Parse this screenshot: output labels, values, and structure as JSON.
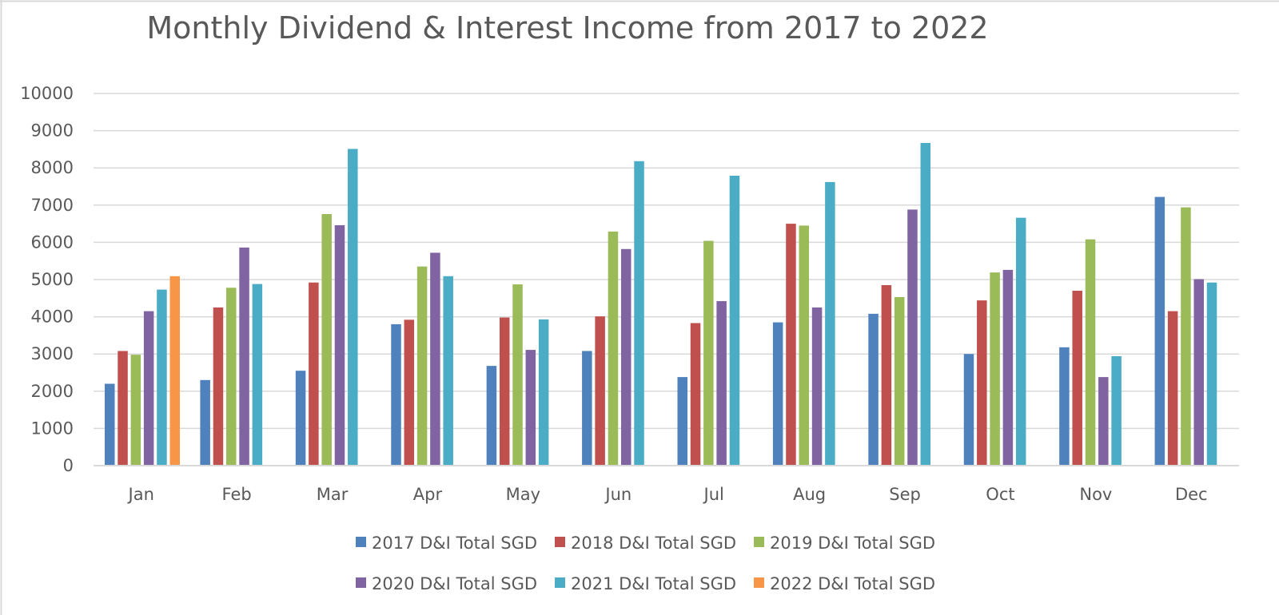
{
  "chart_data": {
    "type": "bar",
    "title": "Monthly Dividend & Interest Income from 2017 to 2022",
    "xlabel": "",
    "ylabel": "",
    "categories": [
      "Jan",
      "Feb",
      "Mar",
      "Apr",
      "May",
      "Jun",
      "Jul",
      "Aug",
      "Sep",
      "Oct",
      "Nov",
      "Dec"
    ],
    "ylim": [
      0,
      10000
    ],
    "yticks": [
      "0",
      "1000",
      "2000",
      "3000",
      "4000",
      "5000",
      "6000",
      "7000",
      "8000",
      "9000",
      "10000"
    ],
    "grid": true,
    "legend_position": "bottom",
    "series": [
      {
        "name": "2017 D&I Total SGD",
        "color": "#4f81bd",
        "values": [
          2200,
          2300,
          2550,
          3800,
          2680,
          3080,
          2380,
          3850,
          4080,
          3000,
          3180,
          7220
        ]
      },
      {
        "name": "2018 D&I Total SGD",
        "color": "#c0504d",
        "values": [
          3080,
          4250,
          4920,
          3920,
          3980,
          4010,
          3830,
          6500,
          4850,
          4440,
          4700,
          4150
        ]
      },
      {
        "name": "2019 D&I Total SGD",
        "color": "#9bbb59",
        "values": [
          2980,
          4780,
          6760,
          5350,
          4870,
          6290,
          6040,
          6450,
          4530,
          5190,
          6080,
          6940
        ]
      },
      {
        "name": "2020 D&I Total SGD",
        "color": "#8064a2",
        "values": [
          4150,
          5860,
          6460,
          5720,
          3110,
          5820,
          4420,
          4250,
          6880,
          5260,
          2380,
          5010
        ]
      },
      {
        "name": "2021 D&I Total SGD",
        "color": "#4bacc6",
        "values": [
          4730,
          4880,
          8510,
          5090,
          3930,
          8180,
          7790,
          7620,
          8670,
          6660,
          2940,
          4920
        ]
      },
      {
        "name": "2022 D&I Total SGD",
        "color": "#f79646",
        "values": [
          5090,
          null,
          null,
          null,
          null,
          null,
          null,
          null,
          null,
          null,
          null,
          null
        ]
      }
    ]
  }
}
